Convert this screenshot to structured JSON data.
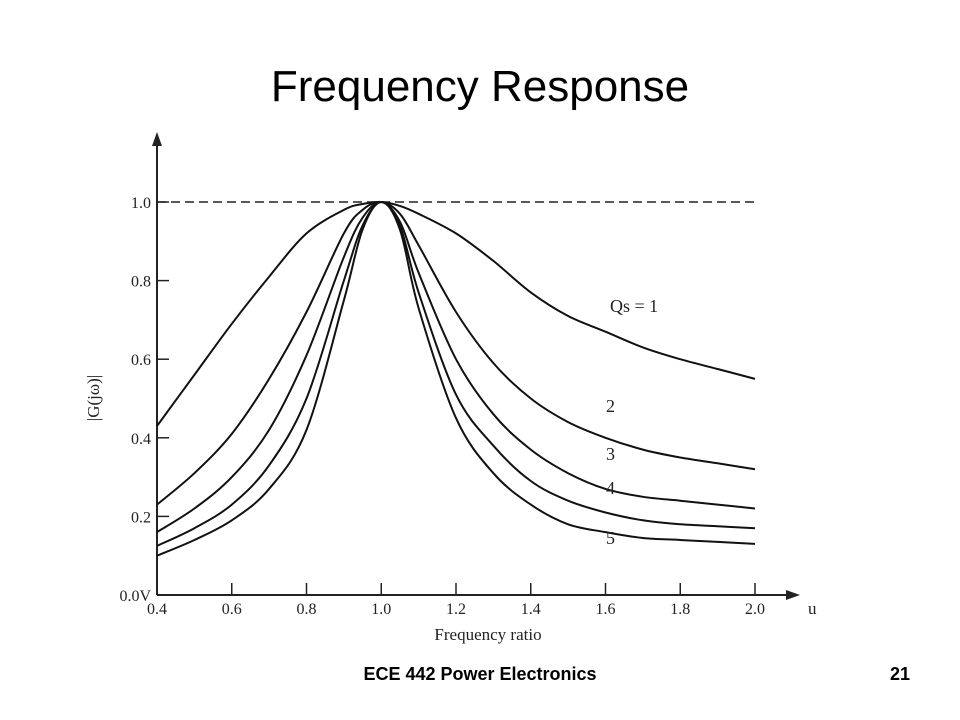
{
  "slide": {
    "title": "Frequency Response",
    "footer_course": "ECE 442 Power Electronics",
    "page_number": "21"
  },
  "chart_data": {
    "type": "line",
    "title": "",
    "xlabel": "Frequency ratio",
    "ylabel": "|G(jω)|",
    "x_unit_label": "u",
    "xlim": [
      0.4,
      2.0
    ],
    "ylim": [
      0.0,
      1.0
    ],
    "x_ticks": [
      "0.4",
      "0.6",
      "0.8",
      "1.0",
      "1.2",
      "1.4",
      "1.6",
      "1.8",
      "2.0"
    ],
    "y_ticks": [
      "0.0V",
      "0.2",
      "0.4",
      "0.6",
      "0.8",
      "1.0"
    ],
    "reference_line": {
      "y": 1.0,
      "style": "dashed"
    },
    "grid": false,
    "x": [
      0.4,
      0.5,
      0.6,
      0.7,
      0.8,
      0.9,
      0.95,
      1.0,
      1.05,
      1.1,
      1.2,
      1.3,
      1.4,
      1.5,
      1.6,
      1.7,
      1.8,
      1.9,
      2.0
    ],
    "series": [
      {
        "name": "Qs = 1",
        "values": [
          0.43,
          0.56,
          0.69,
          0.81,
          0.92,
          0.98,
          0.995,
          1.0,
          0.99,
          0.97,
          0.92,
          0.85,
          0.77,
          0.71,
          0.67,
          0.63,
          0.6,
          0.575,
          0.55
        ]
      },
      {
        "name": "2",
        "values": [
          0.23,
          0.31,
          0.41,
          0.55,
          0.72,
          0.92,
          0.98,
          1.0,
          0.97,
          0.89,
          0.72,
          0.59,
          0.5,
          0.44,
          0.4,
          0.37,
          0.35,
          0.335,
          0.32
        ]
      },
      {
        "name": "3",
        "values": [
          0.16,
          0.22,
          0.3,
          0.42,
          0.61,
          0.86,
          0.96,
          1.0,
          0.95,
          0.82,
          0.6,
          0.46,
          0.37,
          0.31,
          0.27,
          0.25,
          0.24,
          0.23,
          0.22
        ]
      },
      {
        "name": "4",
        "values": [
          0.125,
          0.17,
          0.23,
          0.33,
          0.5,
          0.8,
          0.94,
          1.0,
          0.94,
          0.77,
          0.51,
          0.38,
          0.29,
          0.24,
          0.21,
          0.19,
          0.18,
          0.175,
          0.17
        ]
      },
      {
        "name": "5",
        "values": [
          0.1,
          0.14,
          0.19,
          0.27,
          0.42,
          0.75,
          0.93,
          1.0,
          0.93,
          0.73,
          0.45,
          0.31,
          0.23,
          0.18,
          0.16,
          0.145,
          0.14,
          0.135,
          0.13
        ]
      }
    ],
    "line_color": "#111111"
  }
}
